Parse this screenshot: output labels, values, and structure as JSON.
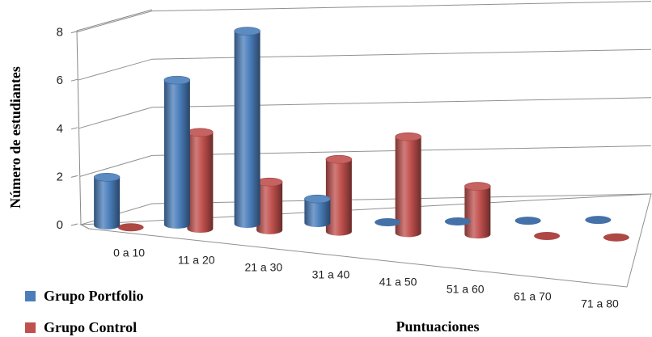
{
  "chart_data": {
    "type": "bar",
    "style": "3d-cylinder",
    "title": "",
    "xlabel": "Puntuaciones",
    "ylabel": "Número de estudiantes",
    "ylim": [
      0,
      8
    ],
    "yticks": [
      "0",
      "2",
      "4",
      "6",
      "8"
    ],
    "categories": [
      "0 a 10",
      "11 a 20",
      "21 a 30",
      "31 a 40",
      "41 a 50",
      "51 a 60",
      "61 a 70",
      "71 a 80"
    ],
    "series": [
      {
        "name": "Grupo Portfolio",
        "color": "#4a7ebb",
        "values": [
          2,
          6,
          8,
          1,
          0,
          0,
          0,
          0
        ]
      },
      {
        "name": "Grupo Control",
        "color": "#c0504d",
        "values": [
          0,
          4,
          2,
          3,
          4,
          2,
          0,
          0
        ]
      }
    ],
    "grid": true,
    "legend_position": "bottom-left"
  }
}
